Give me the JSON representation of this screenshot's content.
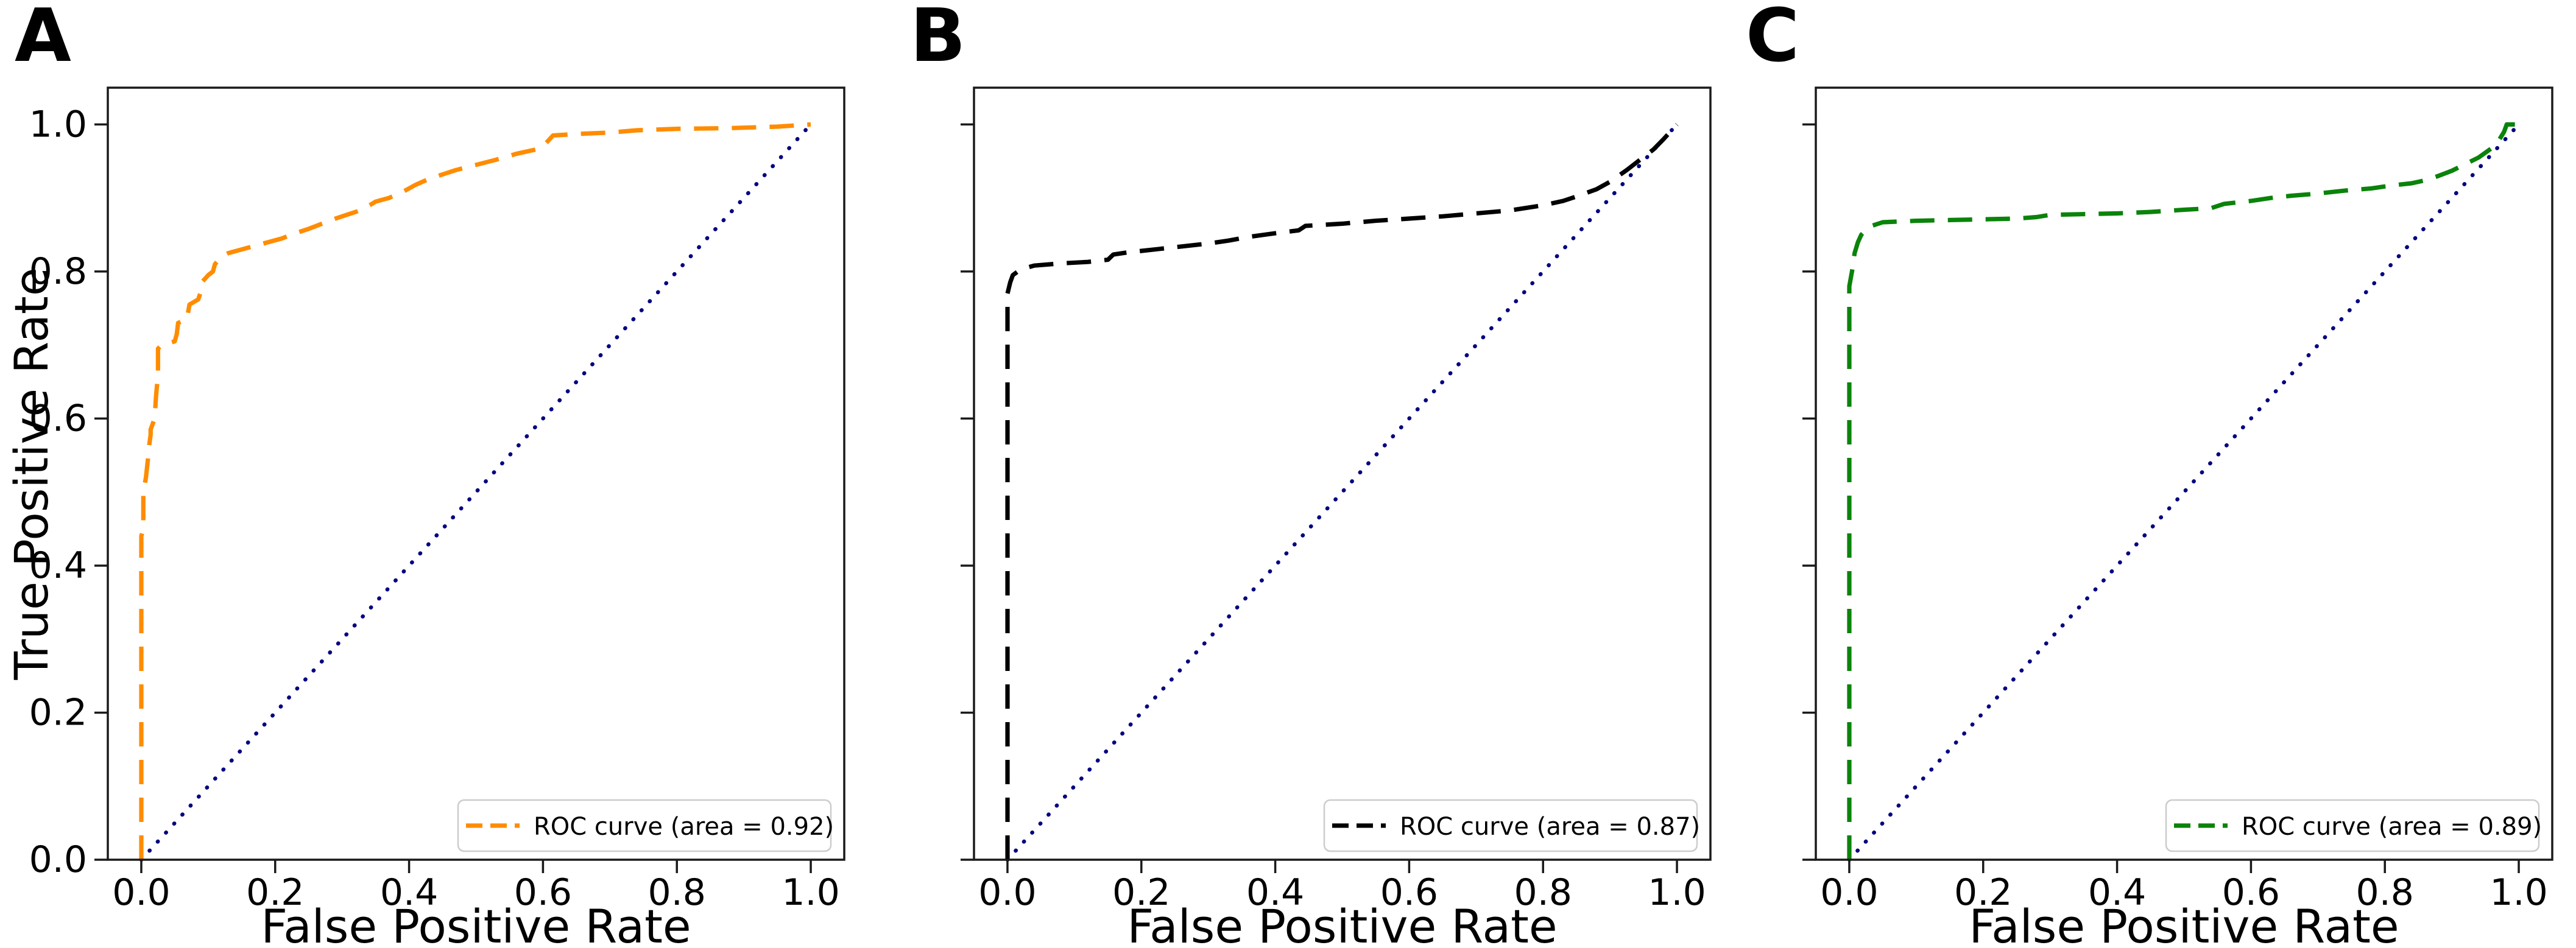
{
  "figure": {
    "background": "#ffffff",
    "description": "Three-panel ROC curve figure"
  },
  "chart_data": {
    "type": "line",
    "subtype": "roc-curves",
    "xlim": [
      -0.05,
      1.05
    ],
    "ylim": [
      0.0,
      1.05
    ],
    "grid": false,
    "legend_position": "lower right",
    "x_ticks": {
      "values": [
        0.0,
        0.2,
        0.4,
        0.6,
        0.8,
        1.0
      ],
      "labels": [
        "0.0",
        "0.2",
        "0.4",
        "0.6",
        "0.8",
        "1.0"
      ]
    },
    "y_ticks": {
      "values": [
        0.0,
        0.2,
        0.4,
        0.6,
        0.8,
        1.0
      ],
      "labels": [
        "0.0",
        "0.2",
        "0.4",
        "0.6",
        "0.8",
        "1.0"
      ]
    },
    "reference_line": {
      "name": "chance-diagonal",
      "points": [
        [
          0,
          0
        ],
        [
          1,
          1
        ]
      ],
      "color": "#000080",
      "style": "dotted"
    },
    "styles": {
      "spine_color": "#1a1a1a",
      "text_color": "#000000",
      "legend_border": "#cccccc",
      "legend_background": "#ffffff"
    },
    "panels": [
      {
        "label": "A",
        "series_name": "ROC curve",
        "legend_label": "ROC curve (area = 0.92)",
        "auc": 0.92,
        "series_color": "#ff8c00",
        "xlabel": "False Positive Rate",
        "ylabel": "True Positive Rate",
        "show_y_tick_labels": true,
        "roc_points": [
          [
            0,
            0
          ],
          [
            0,
            0.44
          ],
          [
            0.003,
            0.45
          ],
          [
            0.003,
            0.5
          ],
          [
            0.007,
            0.52
          ],
          [
            0.01,
            0.545
          ],
          [
            0.012,
            0.565
          ],
          [
            0.014,
            0.578
          ],
          [
            0.014,
            0.585
          ],
          [
            0.02,
            0.6
          ],
          [
            0.022,
            0.63
          ],
          [
            0.025,
            0.66
          ],
          [
            0.025,
            0.695
          ],
          [
            0.03,
            0.7
          ],
          [
            0.05,
            0.705
          ],
          [
            0.053,
            0.715
          ],
          [
            0.055,
            0.73
          ],
          [
            0.068,
            0.735
          ],
          [
            0.07,
            0.745
          ],
          [
            0.072,
            0.755
          ],
          [
            0.085,
            0.762
          ],
          [
            0.088,
            0.77
          ],
          [
            0.09,
            0.785
          ],
          [
            0.095,
            0.79
          ],
          [
            0.1,
            0.795
          ],
          [
            0.107,
            0.8
          ],
          [
            0.11,
            0.81
          ],
          [
            0.115,
            0.815
          ],
          [
            0.12,
            0.82
          ],
          [
            0.13,
            0.825
          ],
          [
            0.15,
            0.83
          ],
          [
            0.17,
            0.835
          ],
          [
            0.19,
            0.84
          ],
          [
            0.21,
            0.845
          ],
          [
            0.23,
            0.852
          ],
          [
            0.25,
            0.858
          ],
          [
            0.27,
            0.865
          ],
          [
            0.29,
            0.872
          ],
          [
            0.31,
            0.878
          ],
          [
            0.33,
            0.884
          ],
          [
            0.35,
            0.895
          ],
          [
            0.37,
            0.9
          ],
          [
            0.39,
            0.908
          ],
          [
            0.41,
            0.918
          ],
          [
            0.43,
            0.926
          ],
          [
            0.45,
            0.932
          ],
          [
            0.47,
            0.938
          ],
          [
            0.5,
            0.945
          ],
          [
            0.53,
            0.952
          ],
          [
            0.56,
            0.96
          ],
          [
            0.59,
            0.966
          ],
          [
            0.6,
            0.97
          ],
          [
            0.615,
            0.985
          ],
          [
            0.65,
            0.987
          ],
          [
            0.7,
            0.989
          ],
          [
            0.74,
            0.992
          ],
          [
            0.8,
            0.994
          ],
          [
            0.88,
            0.995
          ],
          [
            0.95,
            0.997
          ],
          [
            1,
            1
          ]
        ]
      },
      {
        "label": "B",
        "series_name": "ROC curve",
        "legend_label": "ROC curve (area = 0.87)",
        "auc": 0.87,
        "series_color": "#000000",
        "xlabel": "False Positive Rate",
        "ylabel": "",
        "show_y_tick_labels": false,
        "roc_points": [
          [
            0,
            0
          ],
          [
            0,
            0.77
          ],
          [
            0.004,
            0.785
          ],
          [
            0.008,
            0.795
          ],
          [
            0.02,
            0.803
          ],
          [
            0.04,
            0.808
          ],
          [
            0.08,
            0.811
          ],
          [
            0.12,
            0.813
          ],
          [
            0.15,
            0.816
          ],
          [
            0.158,
            0.823
          ],
          [
            0.18,
            0.826
          ],
          [
            0.22,
            0.83
          ],
          [
            0.26,
            0.834
          ],
          [
            0.3,
            0.838
          ],
          [
            0.33,
            0.842
          ],
          [
            0.36,
            0.847
          ],
          [
            0.4,
            0.852
          ],
          [
            0.435,
            0.856
          ],
          [
            0.445,
            0.862
          ],
          [
            0.5,
            0.865
          ],
          [
            0.55,
            0.869
          ],
          [
            0.6,
            0.872
          ],
          [
            0.65,
            0.875
          ],
          [
            0.7,
            0.879
          ],
          [
            0.75,
            0.883
          ],
          [
            0.8,
            0.89
          ],
          [
            0.83,
            0.896
          ],
          [
            0.85,
            0.902
          ],
          [
            0.88,
            0.912
          ],
          [
            0.9,
            0.922
          ],
          [
            0.925,
            0.938
          ],
          [
            0.945,
            0.952
          ],
          [
            0.965,
            0.966
          ],
          [
            0.98,
            0.98
          ],
          [
            1,
            1
          ]
        ]
      },
      {
        "label": "C",
        "series_name": "ROC curve",
        "legend_label": "ROC curve (area = 0.89)",
        "auc": 0.89,
        "series_color": "#0a830a",
        "xlabel": "False Positive Rate",
        "ylabel": "",
        "show_y_tick_labels": false,
        "roc_points": [
          [
            0,
            0
          ],
          [
            0,
            0.78
          ],
          [
            0.004,
            0.8
          ],
          [
            0.008,
            0.825
          ],
          [
            0.013,
            0.84
          ],
          [
            0.018,
            0.85
          ],
          [
            0.03,
            0.861
          ],
          [
            0.05,
            0.867
          ],
          [
            0.1,
            0.869
          ],
          [
            0.15,
            0.87
          ],
          [
            0.2,
            0.871
          ],
          [
            0.25,
            0.872
          ],
          [
            0.28,
            0.874
          ],
          [
            0.3,
            0.877
          ],
          [
            0.35,
            0.878
          ],
          [
            0.4,
            0.879
          ],
          [
            0.45,
            0.881
          ],
          [
            0.5,
            0.884
          ],
          [
            0.54,
            0.886
          ],
          [
            0.56,
            0.892
          ],
          [
            0.6,
            0.896
          ],
          [
            0.63,
            0.9
          ],
          [
            0.66,
            0.903
          ],
          [
            0.7,
            0.906
          ],
          [
            0.74,
            0.91
          ],
          [
            0.78,
            0.913
          ],
          [
            0.81,
            0.917
          ],
          [
            0.84,
            0.92
          ],
          [
            0.86,
            0.924
          ],
          [
            0.88,
            0.93
          ],
          [
            0.9,
            0.937
          ],
          [
            0.92,
            0.946
          ],
          [
            0.94,
            0.955
          ],
          [
            0.96,
            0.968
          ],
          [
            0.97,
            0.978
          ],
          [
            0.978,
            0.99
          ],
          [
            0.982,
            1.0
          ],
          [
            1,
            1
          ]
        ]
      }
    ]
  }
}
